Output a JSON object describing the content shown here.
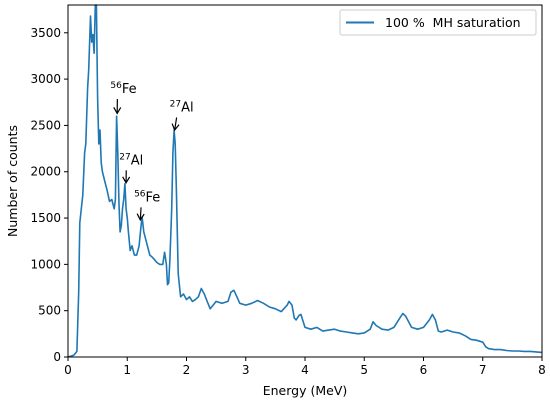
{
  "chart_data": {
    "type": "line",
    "title": "",
    "xlabel": "Energy (MeV)",
    "ylabel": "Number of counts",
    "xlim": [
      0,
      8
    ],
    "ylim": [
      0,
      3800
    ],
    "xticks": [
      0,
      1,
      2,
      3,
      4,
      5,
      6,
      7,
      8
    ],
    "yticks": [
      0,
      500,
      1000,
      1500,
      2000,
      2500,
      3000,
      3500
    ],
    "grid": false,
    "legend_position": "top-right",
    "series": [
      {
        "name": "100 %  MH saturation",
        "color": "#1f77b4",
        "points": [
          [
            0.0,
            0
          ],
          [
            0.05,
            10
          ],
          [
            0.1,
            20
          ],
          [
            0.15,
            60
          ],
          [
            0.18,
            700
          ],
          [
            0.2,
            1450
          ],
          [
            0.25,
            1750
          ],
          [
            0.28,
            2200
          ],
          [
            0.3,
            2300
          ],
          [
            0.33,
            2900
          ],
          [
            0.35,
            3100
          ],
          [
            0.38,
            3680
          ],
          [
            0.4,
            3400
          ],
          [
            0.42,
            3480
          ],
          [
            0.44,
            3280
          ],
          [
            0.46,
            3800
          ],
          [
            0.48,
            3800
          ],
          [
            0.5,
            2800
          ],
          [
            0.52,
            2300
          ],
          [
            0.54,
            2450
          ],
          [
            0.56,
            2100
          ],
          [
            0.58,
            2000
          ],
          [
            0.62,
            1900
          ],
          [
            0.66,
            1800
          ],
          [
            0.7,
            1680
          ],
          [
            0.74,
            1700
          ],
          [
            0.78,
            1600
          ],
          [
            0.8,
            1700
          ],
          [
            0.82,
            2600
          ],
          [
            0.84,
            2200
          ],
          [
            0.86,
            1650
          ],
          [
            0.88,
            1350
          ],
          [
            0.9,
            1420
          ],
          [
            0.92,
            1600
          ],
          [
            0.94,
            1700
          ],
          [
            0.96,
            1870
          ],
          [
            0.98,
            1600
          ],
          [
            1.0,
            1500
          ],
          [
            1.02,
            1350
          ],
          [
            1.05,
            1150
          ],
          [
            1.08,
            1200
          ],
          [
            1.12,
            1100
          ],
          [
            1.16,
            1100
          ],
          [
            1.2,
            1200
          ],
          [
            1.23,
            1400
          ],
          [
            1.25,
            1510
          ],
          [
            1.28,
            1350
          ],
          [
            1.3,
            1300
          ],
          [
            1.34,
            1200
          ],
          [
            1.38,
            1100
          ],
          [
            1.42,
            1080
          ],
          [
            1.46,
            1050
          ],
          [
            1.5,
            1020
          ],
          [
            1.55,
            1000
          ],
          [
            1.6,
            1000
          ],
          [
            1.63,
            1130
          ],
          [
            1.66,
            1000
          ],
          [
            1.68,
            780
          ],
          [
            1.7,
            800
          ],
          [
            1.72,
            1050
          ],
          [
            1.75,
            1600
          ],
          [
            1.77,
            2200
          ],
          [
            1.79,
            2450
          ],
          [
            1.81,
            2300
          ],
          [
            1.83,
            1800
          ],
          [
            1.86,
            900
          ],
          [
            1.9,
            650
          ],
          [
            1.95,
            680
          ],
          [
            2.0,
            620
          ],
          [
            2.05,
            650
          ],
          [
            2.1,
            600
          ],
          [
            2.15,
            620
          ],
          [
            2.2,
            650
          ],
          [
            2.25,
            740
          ],
          [
            2.3,
            680
          ],
          [
            2.35,
            600
          ],
          [
            2.4,
            520
          ],
          [
            2.45,
            560
          ],
          [
            2.5,
            600
          ],
          [
            2.6,
            580
          ],
          [
            2.7,
            600
          ],
          [
            2.75,
            700
          ],
          [
            2.8,
            720
          ],
          [
            2.85,
            650
          ],
          [
            2.9,
            580
          ],
          [
            3.0,
            560
          ],
          [
            3.1,
            580
          ],
          [
            3.2,
            610
          ],
          [
            3.3,
            580
          ],
          [
            3.4,
            540
          ],
          [
            3.5,
            520
          ],
          [
            3.6,
            490
          ],
          [
            3.7,
            560
          ],
          [
            3.73,
            600
          ],
          [
            3.78,
            560
          ],
          [
            3.82,
            420
          ],
          [
            3.85,
            400
          ],
          [
            3.9,
            450
          ],
          [
            3.93,
            460
          ],
          [
            4.0,
            320
          ],
          [
            4.1,
            300
          ],
          [
            4.2,
            320
          ],
          [
            4.3,
            280
          ],
          [
            4.4,
            290
          ],
          [
            4.5,
            300
          ],
          [
            4.6,
            280
          ],
          [
            4.7,
            270
          ],
          [
            4.8,
            260
          ],
          [
            4.9,
            250
          ],
          [
            5.0,
            260
          ],
          [
            5.1,
            300
          ],
          [
            5.15,
            380
          ],
          [
            5.2,
            340
          ],
          [
            5.3,
            300
          ],
          [
            5.4,
            290
          ],
          [
            5.5,
            320
          ],
          [
            5.6,
            420
          ],
          [
            5.65,
            470
          ],
          [
            5.7,
            440
          ],
          [
            5.8,
            320
          ],
          [
            5.9,
            300
          ],
          [
            6.0,
            320
          ],
          [
            6.1,
            400
          ],
          [
            6.15,
            460
          ],
          [
            6.2,
            400
          ],
          [
            6.25,
            280
          ],
          [
            6.3,
            270
          ],
          [
            6.4,
            290
          ],
          [
            6.5,
            270
          ],
          [
            6.6,
            260
          ],
          [
            6.7,
            230
          ],
          [
            6.8,
            190
          ],
          [
            6.9,
            180
          ],
          [
            7.0,
            160
          ],
          [
            7.05,
            110
          ],
          [
            7.1,
            90
          ],
          [
            7.2,
            80
          ],
          [
            7.3,
            80
          ],
          [
            7.4,
            70
          ],
          [
            7.5,
            65
          ],
          [
            7.6,
            65
          ],
          [
            7.7,
            60
          ],
          [
            7.8,
            60
          ],
          [
            7.9,
            55
          ],
          [
            8.0,
            50
          ]
        ]
      }
    ],
    "annotations": [
      {
        "sup": "56",
        "text": "Fe",
        "text_x": 0.85,
        "text_y": 2850,
        "arrow_x": 0.83,
        "arrow_y": 2630
      },
      {
        "sup": "27",
        "text": "Al",
        "text_x": 1.85,
        "text_y": 2650,
        "arrow_x": 1.8,
        "arrow_y": 2450
      },
      {
        "sup": "27",
        "text": "Al",
        "text_x": 1.0,
        "text_y": 2080,
        "arrow_x": 0.98,
        "arrow_y": 1880
      },
      {
        "sup": "56",
        "text": "Fe",
        "text_x": 1.25,
        "text_y": 1680,
        "arrow_x": 1.22,
        "arrow_y": 1480
      }
    ]
  }
}
